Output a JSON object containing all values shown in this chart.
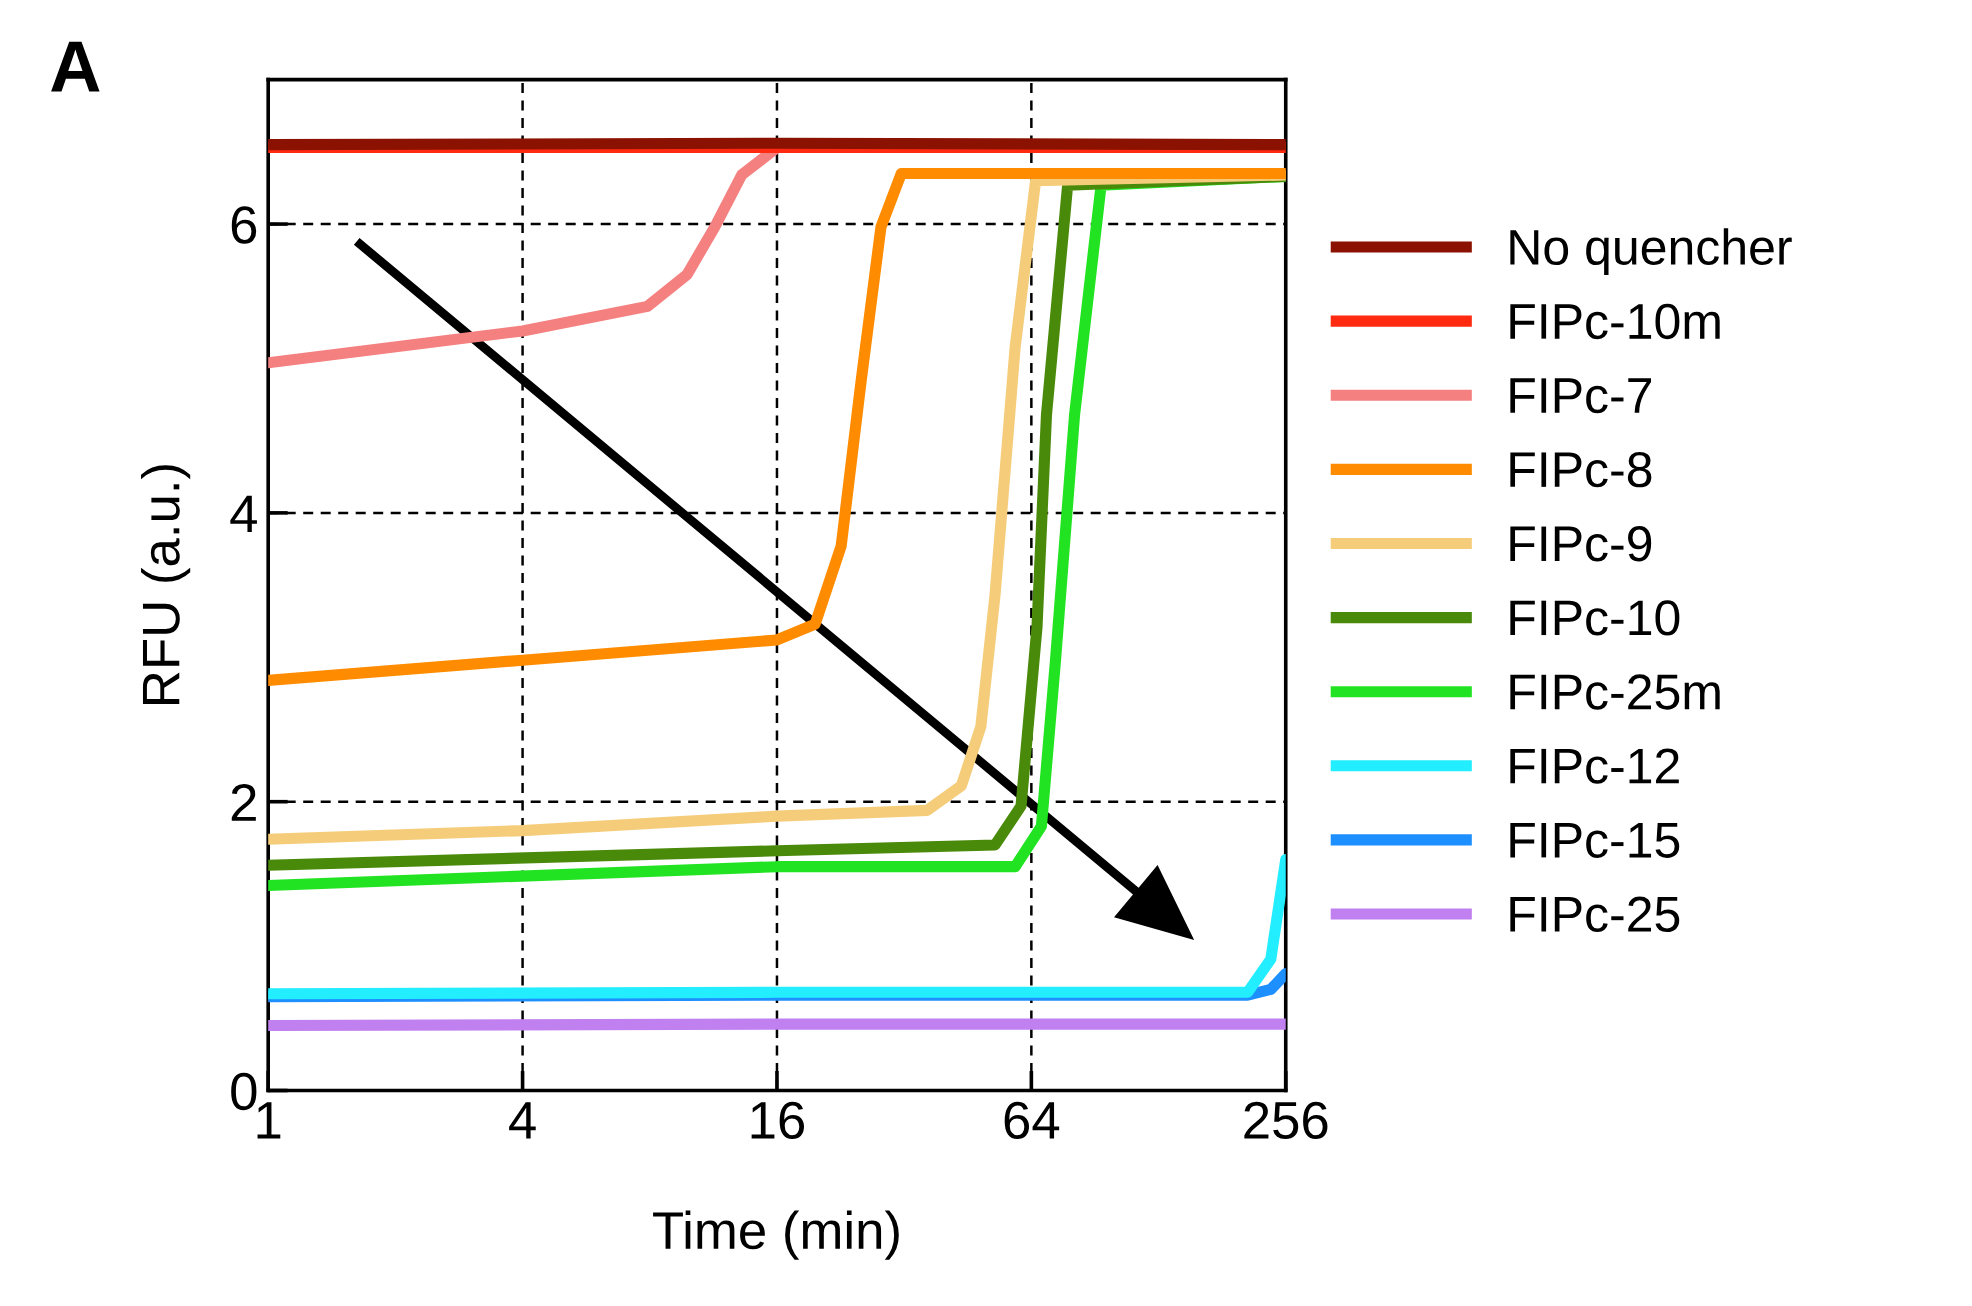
{
  "chart_data": {
    "type": "line",
    "xlabel": "Time (min)",
    "ylabel": "RFU (a.u.)",
    "log": "x",
    "xlim": [
      1,
      256
    ],
    "xticks": [
      1,
      4,
      16,
      64,
      256
    ],
    "ylim": [
      0,
      7
    ],
    "yticks": [
      0,
      2,
      4,
      6
    ],
    "grid": true,
    "legend": "right",
    "line_style": "solid",
    "marker": "none",
    "annotations": [
      "A"
    ],
    "series": [
      {
        "name": "No quencher",
        "color": "#8b1200",
        "x": [
          1,
          16,
          256
        ],
        "values": [
          6.55,
          6.56,
          6.55
        ]
      },
      {
        "name": "FIPc-10m",
        "color": "#ff2a10",
        "x": [
          1,
          16,
          256
        ],
        "values": [
          6.53,
          6.53,
          6.53
        ]
      },
      {
        "name": "FIPc-7",
        "color": "#f58080",
        "x": [
          1,
          4,
          7.9,
          9.8,
          11.4,
          13.2,
          16
        ],
        "values": [
          5.04,
          5.26,
          5.43,
          5.65,
          5.98,
          6.34,
          6.53
        ]
      },
      {
        "name": "FIPc-8",
        "color": "#ff8c00",
        "x": [
          1,
          4,
          16,
          19.7,
          22.7,
          25.3,
          28.2,
          31.5,
          256
        ],
        "values": [
          2.84,
          2.98,
          3.12,
          3.23,
          3.77,
          4.91,
          5.98,
          6.35,
          6.35
        ]
      },
      {
        "name": "FIPc-9",
        "color": "#f5cd7a",
        "x": [
          1,
          4,
          16,
          36.3,
          43.7,
          48.6,
          52.5,
          58.6,
          65.5,
          256
        ],
        "values": [
          1.74,
          1.8,
          1.9,
          1.94,
          2.11,
          2.52,
          3.43,
          5.15,
          6.3,
          6.34
        ]
      },
      {
        "name": "FIPc-10",
        "color": "#4a8a0a",
        "x": [
          1,
          16,
          52.5,
          60.5,
          66,
          69.5,
          78,
          256
        ],
        "values": [
          1.56,
          1.66,
          1.7,
          1.97,
          3.21,
          4.68,
          6.27,
          6.33
        ]
      },
      {
        "name": "FIPc-25m",
        "color": "#22e322",
        "x": [
          1,
          16,
          58.6,
          67.6,
          73,
          81,
          93.6,
          256
        ],
        "values": [
          1.42,
          1.55,
          1.55,
          1.83,
          2.98,
          4.68,
          6.27,
          6.33
        ]
      },
      {
        "name": "FIPc-12",
        "color": "#22eeff",
        "x": [
          1,
          16,
          208,
          236,
          256
        ],
        "values": [
          0.67,
          0.68,
          0.68,
          0.91,
          1.6
        ]
      },
      {
        "name": "FIPc-15",
        "color": "#1e8fff",
        "x": [
          1,
          16,
          208,
          236,
          256
        ],
        "values": [
          0.65,
          0.66,
          0.66,
          0.7,
          0.81
        ]
      },
      {
        "name": "FIPc-25",
        "color": "#c080f0",
        "x": [
          1,
          16,
          256
        ],
        "values": [
          0.45,
          0.46,
          0.46
        ]
      }
    ]
  }
}
